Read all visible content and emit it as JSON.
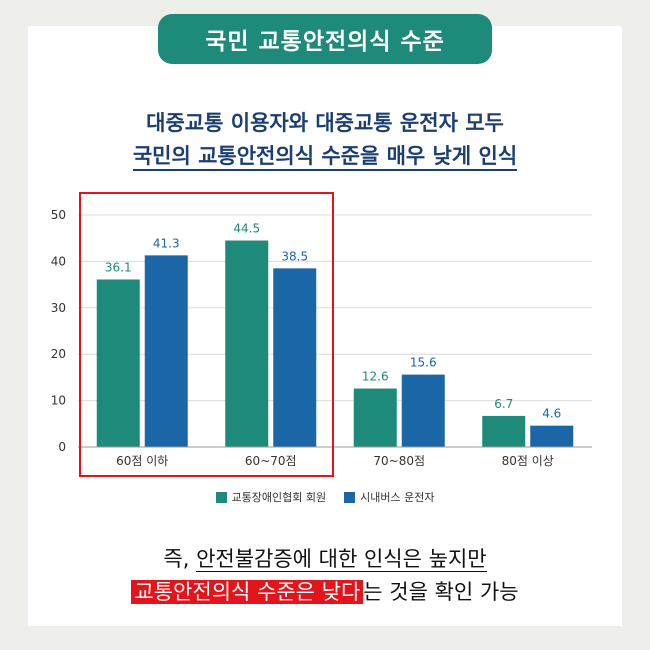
{
  "banner": {
    "title": "국민 교통안전의식 수준"
  },
  "headline": {
    "line1": "대중교통 이용자와 대중교통 운전자 모두",
    "line2": "국민의 교통안전의식 수준을 매우 낮게 인식"
  },
  "chart_data": {
    "type": "bar",
    "categories": [
      "60점 이하",
      "60~70점",
      "70~80점",
      "80점 이상"
    ],
    "series": [
      {
        "name": "교통장애인협회 회원",
        "values": [
          36.1,
          44.5,
          12.6,
          6.7
        ],
        "color": "#1e8a7a"
      },
      {
        "name": "시내버스 운전자",
        "values": [
          41.3,
          38.5,
          15.6,
          4.6
        ],
        "color": "#1a66a6"
      }
    ],
    "ylim": [
      0,
      50
    ],
    "yticks": [
      "0",
      "10",
      "20",
      "30",
      "40",
      "50"
    ],
    "grid": true,
    "legend": "bottom",
    "highlight_categories": [
      "60점 이하",
      "60~70점"
    ],
    "highlight_color": "#e3141b"
  },
  "bottom": {
    "part1_prefix": "즉, ",
    "part1_underlined": "안전불감증에 대한 인식은 높지만",
    "part2_highlight": "교통안전의식 수준은 낮다",
    "part2_suffix": "는 것을 확인 가능"
  }
}
